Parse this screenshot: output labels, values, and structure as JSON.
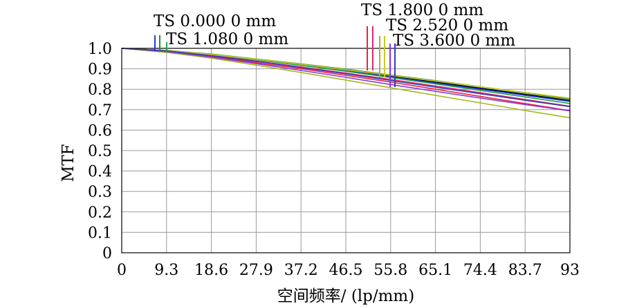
{
  "chart_data": {
    "type": "line",
    "xlabel": "空间频率/ (lp/mm)",
    "ylabel": "MTF",
    "xlim": [
      0,
      93
    ],
    "ylim": [
      0,
      1.0
    ],
    "x_ticks": [
      "0",
      "9.3",
      "18.6",
      "27.9",
      "37.2",
      "46.5",
      "55.8",
      "65.1",
      "74.4",
      "83.7",
      "93"
    ],
    "y_ticks": [
      "0",
      "0.1",
      "0.2",
      "0.3",
      "0.4",
      "0.5",
      "0.6",
      "0.7",
      "0.8",
      "0.9",
      "1.0"
    ],
    "grid": true,
    "legend_position": "top",
    "legend": [
      {
        "label": "TS 0.000 0 mm",
        "colors": [
          "#1f3bd6",
          "#2b8a2b"
        ]
      },
      {
        "label": "TS 1.080 0 mm",
        "colors": [
          "#1fa04a"
        ]
      },
      {
        "label": "TS 1.800 0 mm",
        "colors": [
          "#e8243c",
          "#d82a6a"
        ]
      },
      {
        "label": "TS 2.520 0 mm",
        "colors": [
          "#a8b81a",
          "#c8c82a"
        ]
      },
      {
        "label": "TS 3.600 0 mm",
        "colors": [
          "#8a3ad8",
          "#3a3ab8"
        ]
      }
    ],
    "series": [
      {
        "color": "#000000",
        "x": [
          0,
          9.3,
          18.6,
          27.9,
          37.2,
          46.5,
          55.8,
          65.1,
          74.4,
          83.7,
          93
        ],
        "y": [
          1.0,
          0.99,
          0.97,
          0.945,
          0.92,
          0.895,
          0.865,
          0.835,
          0.805,
          0.775,
          0.745
        ]
      },
      {
        "color": "#1f3bd6",
        "x": [
          0,
          9.3,
          18.6,
          27.9,
          37.2,
          46.5,
          55.8,
          65.1,
          74.4,
          83.7,
          93
        ],
        "y": [
          1.0,
          0.99,
          0.97,
          0.945,
          0.918,
          0.89,
          0.86,
          0.83,
          0.8,
          0.77,
          0.74
        ]
      },
      {
        "color": "#2b8a2b",
        "x": [
          0,
          9.3,
          18.6,
          27.9,
          37.2,
          46.5,
          55.8,
          65.1,
          74.4,
          83.7,
          93
        ],
        "y": [
          1.0,
          0.99,
          0.972,
          0.948,
          0.924,
          0.898,
          0.87,
          0.842,
          0.812,
          0.782,
          0.752
        ]
      },
      {
        "color": "#1fa04a",
        "x": [
          0,
          9.3,
          18.6,
          27.9,
          37.2,
          46.5,
          55.8,
          65.1,
          74.4,
          83.7,
          93
        ],
        "y": [
          1.0,
          0.99,
          0.97,
          0.944,
          0.917,
          0.888,
          0.857,
          0.826,
          0.794,
          0.762,
          0.73
        ]
      },
      {
        "color": "#e8243c",
        "x": [
          0,
          9.3,
          18.6,
          27.9,
          37.2,
          46.5,
          55.8,
          65.1,
          74.4,
          83.7,
          93
        ],
        "y": [
          1.0,
          0.985,
          0.96,
          0.93,
          0.9,
          0.868,
          0.835,
          0.8,
          0.765,
          0.73,
          0.695
        ]
      },
      {
        "color": "#d82a6a",
        "x": [
          0,
          9.3,
          18.6,
          27.9,
          37.2,
          46.5,
          55.8,
          65.1,
          74.4,
          83.7,
          93
        ],
        "y": [
          1.0,
          0.988,
          0.965,
          0.938,
          0.909,
          0.879,
          0.848,
          0.816,
          0.783,
          0.75,
          0.717
        ]
      },
      {
        "color": "#a8b81a",
        "x": [
          0,
          9.3,
          18.6,
          27.9,
          37.2,
          46.5,
          55.8,
          65.1,
          74.4,
          83.7,
          93
        ],
        "y": [
          1.0,
          0.98,
          0.952,
          0.918,
          0.882,
          0.845,
          0.807,
          0.77,
          0.733,
          0.696,
          0.66
        ]
      },
      {
        "color": "#c8c82a",
        "x": [
          0,
          9.3,
          18.6,
          27.9,
          37.2,
          46.5,
          55.8,
          65.1,
          74.4,
          83.7,
          93
        ],
        "y": [
          1.0,
          0.99,
          0.97,
          0.947,
          0.922,
          0.895,
          0.868,
          0.84,
          0.812,
          0.784,
          0.756
        ]
      },
      {
        "color": "#8a3ad8",
        "x": [
          0,
          9.3,
          18.6,
          27.9,
          37.2,
          46.5,
          55.8,
          65.1,
          74.4,
          83.7,
          93
        ],
        "y": [
          1.0,
          0.984,
          0.957,
          0.925,
          0.892,
          0.858,
          0.823,
          0.79,
          0.757,
          0.725,
          0.694
        ]
      },
      {
        "color": "#3a3ab8",
        "x": [
          0,
          9.3,
          18.6,
          27.9,
          37.2,
          46.5,
          55.8,
          65.1,
          74.4,
          83.7,
          93
        ],
        "y": [
          1.0,
          0.988,
          0.964,
          0.936,
          0.906,
          0.875,
          0.843,
          0.81,
          0.778,
          0.746,
          0.715
        ]
      }
    ]
  }
}
